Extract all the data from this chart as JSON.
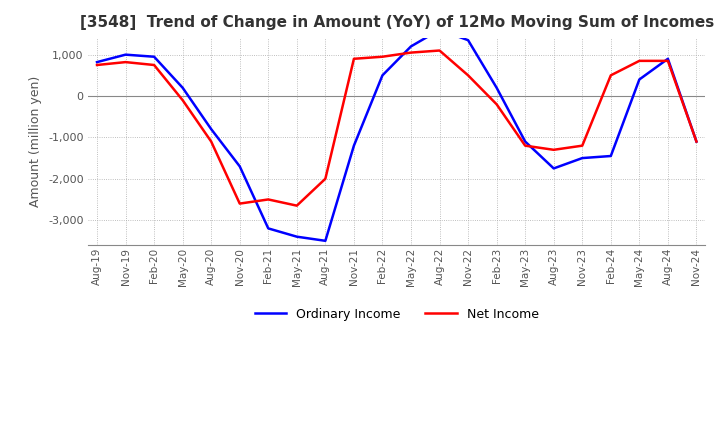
{
  "title": "[3548]  Trend of Change in Amount (YoY) of 12Mo Moving Sum of Incomes",
  "ylabel": "Amount (million yen)",
  "ylim": [
    -3600,
    1400
  ],
  "yticks": [
    -3000,
    -2000,
    -1000,
    0,
    1000
  ],
  "x_labels": [
    "Aug-19",
    "Nov-19",
    "Feb-20",
    "May-20",
    "Aug-20",
    "Nov-20",
    "Feb-21",
    "May-21",
    "Aug-21",
    "Nov-21",
    "Feb-22",
    "May-22",
    "Aug-22",
    "Nov-22",
    "Feb-23",
    "May-23",
    "Aug-23",
    "Nov-23",
    "Feb-24",
    "May-24",
    "Aug-24",
    "Nov-24"
  ],
  "ordinary_income": [
    820,
    1000,
    950,
    200,
    -800,
    -1700,
    -3200,
    -3400,
    -3500,
    -1200,
    500,
    1200,
    1600,
    1350,
    200,
    -1100,
    -1750,
    -1500,
    -1450,
    400,
    900,
    -1100
  ],
  "net_income": [
    750,
    820,
    750,
    -100,
    -1100,
    -2600,
    -2500,
    -2650,
    -2000,
    900,
    950,
    1050,
    1100,
    500,
    -200,
    -1200,
    -1300,
    -1200,
    500,
    850,
    850,
    -1100
  ],
  "ordinary_color": "#0000ff",
  "net_color": "#ff0000",
  "line_width": 1.8,
  "grid_color": "#aaaaaa",
  "background_color": "#ffffff",
  "legend_ordinary": "Ordinary Income",
  "legend_net": "Net Income",
  "title_color": "#333333",
  "tick_color": "#555555"
}
